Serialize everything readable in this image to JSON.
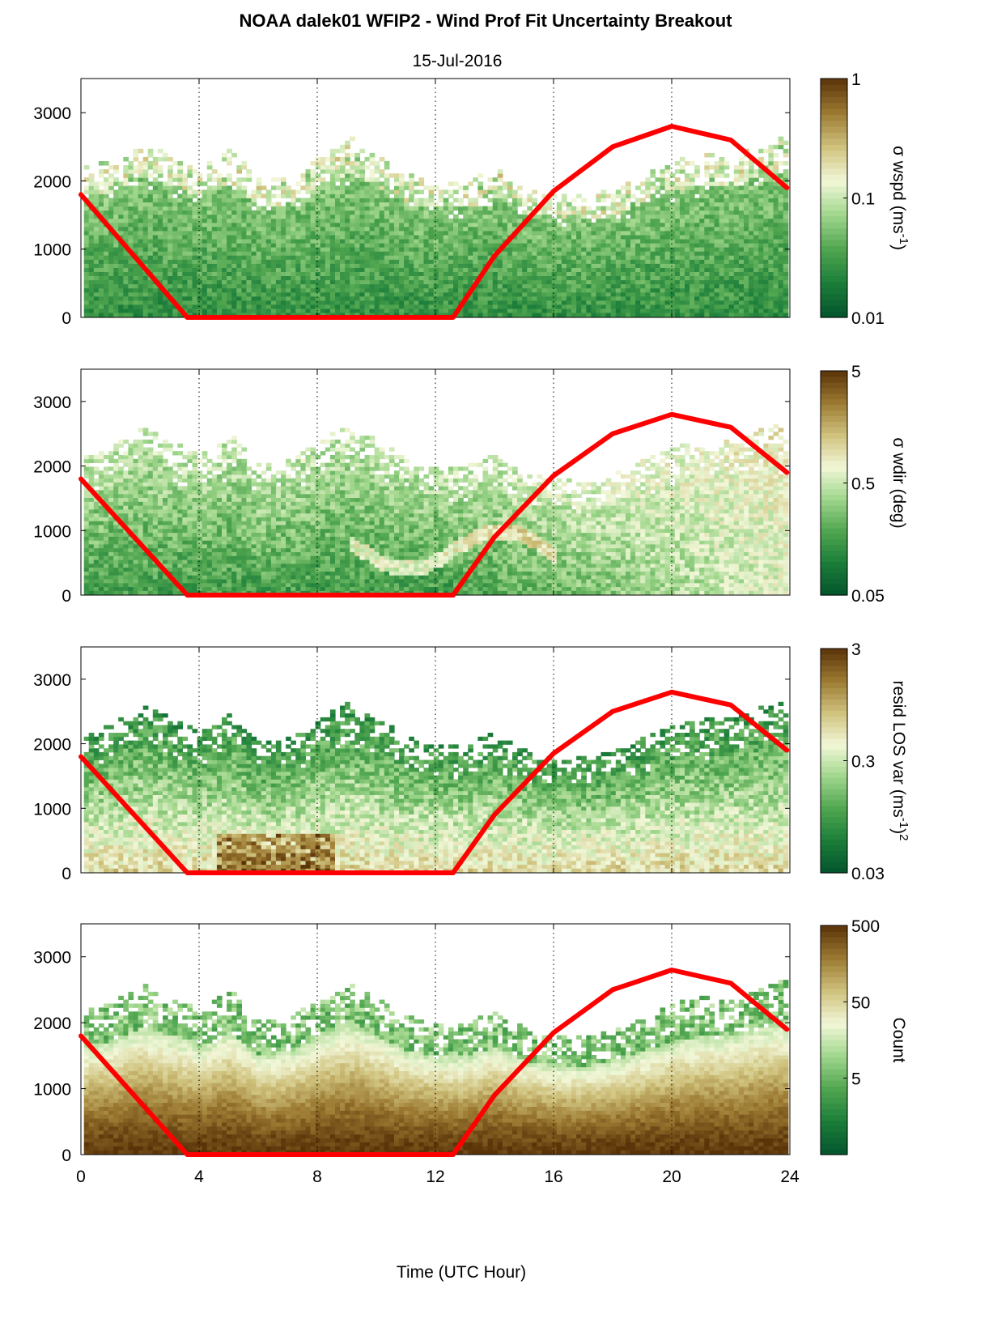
{
  "title": "NOAA dalek01 WFIP2 - Wind Prof Fit Uncertainty Breakout",
  "subtitle": "15-Jul-2016",
  "xlabel": "Time (UTC Hour)",
  "colors": {
    "sun_line": "#ff0000",
    "colormap": [
      "#03542c",
      "#1b7d3a",
      "#4fa54f",
      "#9fd68b",
      "#f2f7d8",
      "#cfc27d",
      "#9c7a32",
      "#5a3308"
    ]
  },
  "chart_data": [
    {
      "type": "heatmap",
      "panel": "wspd",
      "xlim": [
        0,
        24
      ],
      "ylim": [
        0,
        3500
      ],
      "xticks": [
        0,
        4,
        8,
        12,
        16,
        20,
        24
      ],
      "yticks": [
        0,
        1000,
        2000,
        3000
      ],
      "grid": "vertical dotted at 4, 8, 12, 16, 20",
      "colorbar": {
        "label_main": "σ wspd (ms",
        "label_sup": "-1",
        "label_end": ")",
        "scale": "log",
        "ticks": [
          "0.01",
          "0.1",
          "1"
        ],
        "range": [
          0.01,
          1
        ]
      },
      "data_top_profile_m": {
        "x": [
          0,
          1,
          2,
          3,
          4,
          5,
          6,
          7,
          8,
          9,
          10,
          11,
          12,
          13,
          14,
          15,
          16,
          17,
          18,
          19,
          20,
          21,
          22,
          23,
          24
        ],
        "y": [
          2200,
          2300,
          2600,
          2400,
          2200,
          2500,
          2000,
          2100,
          2400,
          2650,
          2400,
          2100,
          2000,
          2000,
          2200,
          1900,
          1800,
          1800,
          1900,
          2100,
          2300,
          2400,
          2400,
          2600,
          2650
        ]
      },
      "series": [
        {
          "name": "",
          "x": [
            0,
            3.6,
            12.6,
            14,
            16,
            18,
            20,
            22,
            23.9
          ],
          "y": [
            1800,
            0,
            0,
            900,
            1850,
            2500,
            2800,
            2600,
            1900
          ]
        }
      ]
    },
    {
      "type": "heatmap",
      "panel": "wdir",
      "xlim": [
        0,
        24
      ],
      "ylim": [
        0,
        3500
      ],
      "xticks": [
        0,
        4,
        8,
        12,
        16,
        20,
        24
      ],
      "yticks": [
        0,
        1000,
        2000,
        3000
      ],
      "grid": "vertical dotted at 4, 8, 12, 16, 20",
      "colorbar": {
        "label_main": "σ wdir (deg)",
        "label_sup": "",
        "label_end": "",
        "scale": "log",
        "ticks": [
          "0.05",
          "0.5",
          "5"
        ],
        "range": [
          0.05,
          5
        ]
      },
      "series": [
        {
          "name": "",
          "x": [
            0,
            3.6,
            12.6,
            14,
            16,
            18,
            20,
            22,
            23.9
          ],
          "y": [
            1800,
            0,
            0,
            900,
            1850,
            2500,
            2800,
            2600,
            1900
          ]
        }
      ]
    },
    {
      "type": "heatmap",
      "panel": "resid",
      "xlim": [
        0,
        24
      ],
      "ylim": [
        0,
        3500
      ],
      "xticks": [
        0,
        4,
        8,
        12,
        16,
        20,
        24
      ],
      "yticks": [
        0,
        1000,
        2000,
        3000
      ],
      "grid": "vertical dotted at 4, 8, 12, 16, 20",
      "colorbar": {
        "label_main": "resid LOS var (ms",
        "label_sup": "-1",
        "label_end": ")",
        "label_sup2": "2",
        "scale": "log",
        "ticks": [
          "0.03",
          "0.3",
          "3"
        ],
        "range": [
          0.03,
          3
        ]
      },
      "series": [
        {
          "name": "",
          "x": [
            0,
            3.6,
            12.6,
            14,
            16,
            18,
            20,
            22,
            23.9
          ],
          "y": [
            1800,
            0,
            0,
            900,
            1850,
            2500,
            2800,
            2600,
            1900
          ]
        }
      ]
    },
    {
      "type": "heatmap",
      "panel": "count",
      "xlim": [
        0,
        24
      ],
      "ylim": [
        0,
        3500
      ],
      "xticks": [
        0,
        4,
        8,
        12,
        16,
        20,
        24
      ],
      "yticks": [
        0,
        1000,
        2000,
        3000
      ],
      "grid": "vertical dotted at 4, 8, 12, 16, 20",
      "colorbar": {
        "label_main": "Count",
        "label_sup": "",
        "label_end": "",
        "scale": "log",
        "ticks": [
          "5",
          "50",
          "500"
        ],
        "range": [
          0.5,
          500
        ]
      },
      "series": [
        {
          "name": "",
          "x": [
            0,
            3.6,
            12.6,
            14,
            16,
            18,
            20,
            22,
            23.9
          ],
          "y": [
            1800,
            0,
            0,
            900,
            1850,
            2500,
            2800,
            2600,
            1900
          ]
        }
      ]
    }
  ]
}
